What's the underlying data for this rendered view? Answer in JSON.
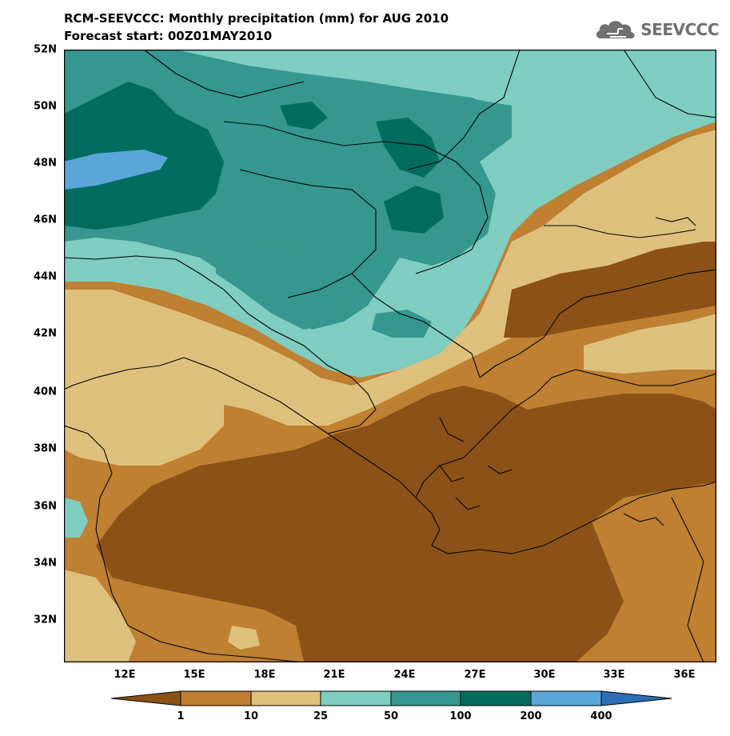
{
  "title_line1": "RCM-SEEVCCC: Monthly precipitation (mm) for AUG 2010",
  "title_line2": "Forecast start: 00Z01MAY2010",
  "logo": {
    "text": "SEEVCCC",
    "icon": "cloud-logo-icon",
    "color": "#707070"
  },
  "lat_labels": [
    "52N",
    "50N",
    "48N",
    "46N",
    "44N",
    "42N",
    "40N",
    "38N",
    "36N",
    "34N",
    "32N"
  ],
  "lon_labels": [
    "12E",
    "15E",
    "18E",
    "21E",
    "24E",
    "27E",
    "30E",
    "33E",
    "36E"
  ],
  "colorbar": {
    "labels": [
      "1",
      "10",
      "25",
      "50",
      "100",
      "200",
      "400"
    ],
    "colors": [
      "#8c5116",
      "#bf8032",
      "#dfc17e",
      "#80cdc1",
      "#35978f",
      "#016c5e",
      "#5ba6d8",
      "#2b6fb8"
    ]
  },
  "legend": {
    "colors": {
      "lt1": "#8c5116",
      "c1_10": "#bf8032",
      "c10_25": "#dfc17e",
      "c25_50": "#80cdc1",
      "c50_100": "#35978f",
      "c100_200": "#016c5e",
      "c200_400": "#5ba6d8",
      "gt400": "#2b6fb8"
    }
  }
}
